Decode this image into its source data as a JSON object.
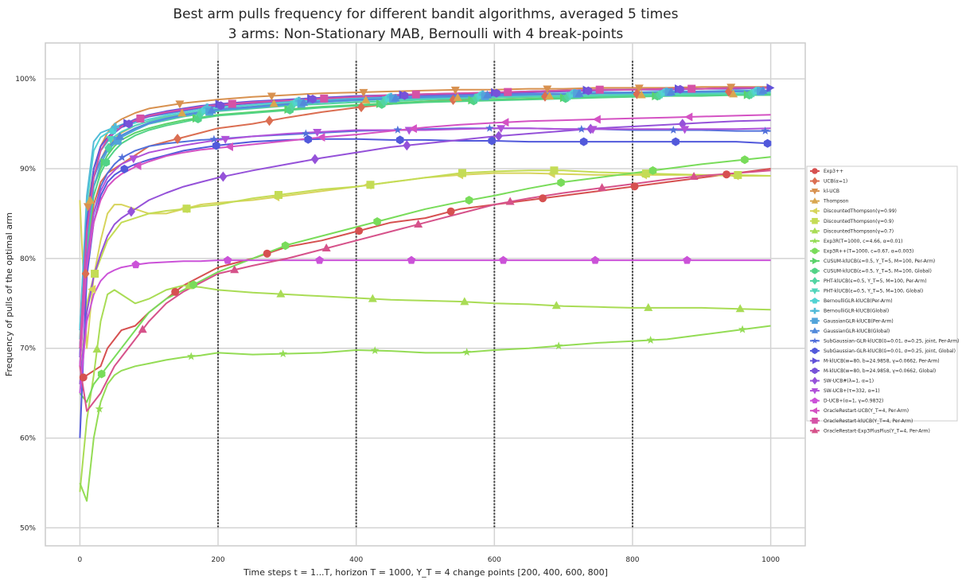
{
  "chart_data": {
    "type": "line",
    "title_line1": "Best arm pulls frequency for different bandit algorithms, averaged 5 times",
    "title_line2": "3 arms: Non-Stationary MAB, Bernoulli with 4 break-points",
    "xlabel": "Time steps t = 1...T, horizon T = 1000, Υ_T = 4 change points [200, 400, 600, 800]",
    "ylabel": "Frequency of pulls of the optimal arm",
    "xlim": [
      -50,
      1050
    ],
    "ylim": [
      48,
      104
    ],
    "xticks": [
      0,
      200,
      400,
      600,
      800,
      1000
    ],
    "xtick_labels": [
      "0",
      "200",
      "400",
      "600",
      "800",
      "1000"
    ],
    "yticks": [
      50,
      60,
      70,
      80,
      90,
      100
    ],
    "ytick_labels": [
      "50%",
      "60%",
      "70%",
      "80%",
      "90%",
      "100%"
    ],
    "breakpoints": [
      200,
      400,
      600,
      800
    ],
    "grid": true,
    "legend_position": "right",
    "x": [
      0,
      10,
      20,
      30,
      40,
      50,
      60,
      80,
      100,
      125,
      150,
      175,
      200,
      250,
      300,
      350,
      400,
      450,
      500,
      550,
      600,
      650,
      700,
      750,
      800,
      850,
      900,
      950,
      1000
    ],
    "series": [
      {
        "name": "Exp3++",
        "color": "#d65050",
        "marker": "circle",
        "values": [
          66.5,
          67.0,
          67.5,
          68.0,
          70.0,
          71.0,
          72.0,
          72.5,
          74.0,
          75.5,
          77.0,
          78.0,
          79.0,
          80.0,
          81.3,
          82.0,
          83.0,
          84.0,
          84.5,
          85.5,
          86.0,
          86.5,
          87.0,
          87.5,
          88.0,
          88.5,
          89.0,
          89.5,
          90.0
        ]
      },
      {
        "name": "UCB(α=1)",
        "color": "#db6e52",
        "marker": "diamond",
        "values": [
          70.0,
          80.0,
          86.0,
          88.5,
          89.5,
          90.0,
          90.5,
          91.5,
          92.5,
          93.0,
          93.5,
          94.0,
          94.5,
          95.0,
          95.7,
          96.3,
          96.8,
          97.2,
          97.5,
          97.7,
          97.9,
          98.0,
          98.1,
          98.2,
          98.3,
          98.4,
          98.5,
          98.6,
          98.7
        ]
      },
      {
        "name": "kl-UCB",
        "color": "#d8914f",
        "marker": "triangle-down",
        "values": [
          72.0,
          85.0,
          90.0,
          92.5,
          94.0,
          95.0,
          95.5,
          96.2,
          96.7,
          97.0,
          97.3,
          97.5,
          97.7,
          98.0,
          98.2,
          98.4,
          98.5,
          98.6,
          98.7,
          98.8,
          98.8,
          98.9,
          98.9,
          99.0,
          99.0,
          99.0,
          99.1,
          99.1,
          99.1
        ]
      },
      {
        "name": "Thompson",
        "color": "#d9a64f",
        "marker": "triangle-up",
        "values": [
          71.0,
          84.0,
          89.0,
          91.0,
          92.5,
          93.3,
          94.0,
          94.8,
          95.3,
          95.8,
          96.2,
          96.5,
          96.8,
          97.1,
          97.3,
          97.5,
          97.6,
          97.7,
          97.8,
          97.9,
          98.0,
          98.0,
          98.1,
          98.1,
          98.2,
          98.2,
          98.3,
          98.3,
          98.3
        ]
      },
      {
        "name": "DiscountedThompson(γ=0.99)",
        "color": "#d7d45c",
        "marker": "triangle-left",
        "values": [
          86.5,
          70.0,
          78.0,
          82.0,
          85.0,
          86.0,
          86.0,
          85.5,
          85.0,
          85.0,
          85.5,
          86.0,
          86.2,
          86.5,
          87.0,
          87.5,
          88.0,
          88.5,
          89.0,
          89.3,
          89.5,
          89.5,
          89.4,
          89.3,
          89.3,
          89.3,
          89.3,
          89.2,
          89.2
        ]
      },
      {
        "name": "DiscountedThompson(γ=0.9)",
        "color": "#c4dc55",
        "marker": "square",
        "values": [
          66.0,
          75.0,
          78.0,
          80.0,
          82.0,
          83.0,
          84.0,
          84.5,
          85.0,
          85.3,
          85.5,
          85.8,
          86.0,
          86.7,
          87.2,
          87.7,
          88.0,
          88.5,
          89.0,
          89.5,
          89.7,
          89.8,
          89.8,
          89.6,
          89.5,
          89.4,
          89.3,
          89.3,
          89.2
        ]
      },
      {
        "name": "DiscountedThompson(γ=0.7)",
        "color": "#a9dc55",
        "marker": "triangle-up",
        "values": [
          54.0,
          62.0,
          67.0,
          73.0,
          76.0,
          76.5,
          76.0,
          75.0,
          75.5,
          76.5,
          77.0,
          76.8,
          76.5,
          76.2,
          76.0,
          75.8,
          75.6,
          75.4,
          75.3,
          75.2,
          75.0,
          74.9,
          74.7,
          74.6,
          74.5,
          74.5,
          74.5,
          74.4,
          74.3
        ]
      },
      {
        "name": "Exp3R(T=1000, c=4.66, α=0.01)",
        "color": "#94dc55",
        "marker": "star",
        "values": [
          55.0,
          53.0,
          60.0,
          64.0,
          66.0,
          67.0,
          67.5,
          68.0,
          68.3,
          68.7,
          69.0,
          69.2,
          69.5,
          69.3,
          69.4,
          69.5,
          69.8,
          69.7,
          69.5,
          69.5,
          69.8,
          70.0,
          70.3,
          70.6,
          70.8,
          71.0,
          71.5,
          72.0,
          72.5
        ]
      },
      {
        "name": "Exp3R++(T=1000, c=0.67, α=0.003)",
        "color": "#79dc5a",
        "marker": "hexagon",
        "values": [
          65.0,
          64.0,
          66.0,
          67.0,
          68.0,
          69.0,
          70.0,
          72.0,
          74.0,
          75.5,
          76.5,
          77.5,
          78.5,
          80.0,
          81.5,
          82.5,
          83.5,
          84.5,
          85.5,
          86.3,
          87.0,
          87.8,
          88.5,
          89.0,
          89.5,
          90.0,
          90.5,
          90.9,
          91.3
        ]
      },
      {
        "name": "CUSUM-klUCB(ε=0.5, Υ_T=5, M=100, Per-Arm)",
        "color": "#5bd26a",
        "marker": "triangle-right",
        "values": [
          70.0,
          82.0,
          88.0,
          90.0,
          91.5,
          92.5,
          93.2,
          94.0,
          94.5,
          95.0,
          95.4,
          95.7,
          96.0,
          96.3,
          96.6,
          96.9,
          97.1,
          97.3,
          97.5,
          97.6,
          97.7,
          97.8,
          97.9,
          98.0,
          98.1,
          98.1,
          98.2,
          98.2,
          98.3
        ]
      },
      {
        "name": "CUSUM-klUCB(ε=0.5, Υ_T=5, M=100, Global)",
        "color": "#52d386",
        "marker": "hexagon",
        "values": [
          70.0,
          81.0,
          87.0,
          89.5,
          91.0,
          92.0,
          92.8,
          93.7,
          94.3,
          94.8,
          95.2,
          95.6,
          95.9,
          96.2,
          96.5,
          96.8,
          97.0,
          97.2,
          97.4,
          97.5,
          97.6,
          97.7,
          97.8,
          97.9,
          98.0,
          98.1,
          98.1,
          98.2,
          98.2
        ]
      },
      {
        "name": "PHT-klUCB(ε=0.5, Υ_T=5, M=100, Per-Arm)",
        "color": "#52d4a2",
        "marker": "diamond",
        "values": [
          70.0,
          83.0,
          89.0,
          91.0,
          92.2,
          93.0,
          93.6,
          94.4,
          95.0,
          95.4,
          95.8,
          96.1,
          96.4,
          96.7,
          97.0,
          97.2,
          97.4,
          97.5,
          97.7,
          97.8,
          97.9,
          98.0,
          98.0,
          98.1,
          98.2,
          98.2,
          98.3,
          98.3,
          98.4
        ]
      },
      {
        "name": "PHT-klUCB(ε=0.5, Υ_T=5, M=100, Global)",
        "color": "#52d5bb",
        "marker": "triangle-down",
        "values": [
          71.0,
          84.0,
          90.0,
          92.0,
          93.0,
          93.6,
          94.1,
          94.8,
          95.3,
          95.7,
          96.0,
          96.3,
          96.6,
          96.9,
          97.2,
          97.4,
          97.6,
          97.7,
          97.8,
          97.9,
          98.0,
          98.1,
          98.1,
          98.2,
          98.3,
          98.3,
          98.4,
          98.4,
          98.5
        ]
      },
      {
        "name": "BernoulliGLR-klUCB(Per-Arm)",
        "color": "#52d3d3",
        "marker": "pentagon",
        "values": [
          72.0,
          86.0,
          92.0,
          93.5,
          94.0,
          94.3,
          94.6,
          95.1,
          95.5,
          95.9,
          96.2,
          96.5,
          96.8,
          97.1,
          97.4,
          97.6,
          97.8,
          97.9,
          98.0,
          98.1,
          98.2,
          98.3,
          98.3,
          98.4,
          98.5,
          98.5,
          98.6,
          98.6,
          98.7
        ]
      },
      {
        "name": "BernoulliGLR-klUCB(Global)",
        "color": "#52bbd8",
        "marker": "plus",
        "values": [
          72.0,
          87.0,
          93.0,
          94.0,
          94.3,
          94.6,
          94.9,
          95.4,
          95.8,
          96.1,
          96.4,
          96.7,
          97.0,
          97.3,
          97.5,
          97.7,
          97.9,
          98.0,
          98.1,
          98.2,
          98.3,
          98.3,
          98.4,
          98.5,
          98.5,
          98.6,
          98.6,
          98.7,
          98.7
        ]
      },
      {
        "name": "GaussianGLR-klUCB(Per-Arm)",
        "color": "#52a4da",
        "marker": "square",
        "values": [
          70.0,
          82.0,
          88.0,
          90.5,
          92.0,
          92.8,
          93.5,
          94.3,
          95.0,
          95.5,
          95.9,
          96.2,
          96.5,
          96.8,
          97.1,
          97.4,
          97.6,
          97.8,
          97.9,
          98.0,
          98.1,
          98.2,
          98.3,
          98.4,
          98.4,
          98.5,
          98.5,
          98.6,
          98.6
        ]
      },
      {
        "name": "GaussianGLR-klUCB(Global)",
        "color": "#528adb",
        "marker": "triangle-up",
        "values": [
          70.0,
          83.0,
          89.0,
          91.0,
          92.3,
          93.1,
          93.7,
          94.5,
          95.1,
          95.6,
          96.0,
          96.3,
          96.6,
          96.9,
          97.2,
          97.5,
          97.7,
          97.8,
          98.0,
          98.1,
          98.2,
          98.3,
          98.3,
          98.4,
          98.5,
          98.5,
          98.6,
          98.6,
          98.7
        ]
      },
      {
        "name": "SubGaussian-GLR-klUCB(δ=0.01, σ=0.25, joint, Per-Arm)",
        "color": "#5270db",
        "marker": "star",
        "values": [
          68.0,
          80.0,
          85.0,
          88.0,
          89.5,
          90.5,
          91.2,
          92.0,
          92.5,
          92.8,
          93.0,
          93.2,
          93.3,
          93.6,
          93.8,
          94.0,
          94.2,
          94.3,
          94.4,
          94.5,
          94.5,
          94.5,
          94.4,
          94.4,
          94.3,
          94.3,
          94.3,
          94.2,
          94.2
        ]
      },
      {
        "name": "SubGaussian-GLR-klUCB(δ=0.01, σ=0.25, joint, Global)",
        "color": "#5259db",
        "marker": "hexagon",
        "values": [
          60.0,
          78.0,
          84.0,
          87.0,
          88.5,
          89.3,
          89.8,
          90.5,
          91.0,
          91.5,
          92.0,
          92.3,
          92.6,
          93.0,
          93.2,
          93.3,
          93.3,
          93.2,
          93.2,
          93.1,
          93.1,
          93.0,
          93.0,
          93.0,
          93.0,
          93.0,
          93.0,
          93.0,
          92.8
        ]
      },
      {
        "name": "M-klUCB(w=80, b=24.9858, γ=0.0662, Per-Arm)",
        "color": "#6252d9",
        "marker": "triangle-right",
        "values": [
          69.0,
          84.0,
          90.0,
          92.5,
          93.5,
          94.2,
          94.8,
          95.5,
          96.0,
          96.4,
          96.7,
          97.0,
          97.2,
          97.5,
          97.7,
          97.9,
          98.1,
          98.2,
          98.3,
          98.4,
          98.5,
          98.6,
          98.7,
          98.8,
          98.8,
          98.9,
          98.9,
          99.0,
          99.0
        ]
      },
      {
        "name": "M-klUCB(w=80, b=24.9858, γ=0.0662, Global)",
        "color": "#7752d9",
        "marker": "hexagon",
        "values": [
          69.0,
          83.0,
          89.0,
          92.0,
          93.2,
          94.0,
          94.6,
          95.3,
          95.8,
          96.2,
          96.5,
          96.8,
          97.0,
          97.3,
          97.6,
          97.8,
          98.0,
          98.1,
          98.2,
          98.3,
          98.4,
          98.5,
          98.6,
          98.7,
          98.8,
          98.8,
          98.9,
          98.9,
          99.0
        ]
      },
      {
        "name": "SW-UCB#(λ=1, α=1)",
        "color": "#9552d9",
        "marker": "diamond",
        "values": [
          66.0,
          74.0,
          78.0,
          80.5,
          82.5,
          83.8,
          84.5,
          85.5,
          86.5,
          87.3,
          88.0,
          88.5,
          89.0,
          89.8,
          90.5,
          91.2,
          91.8,
          92.4,
          92.8,
          93.2,
          93.6,
          93.9,
          94.2,
          94.5,
          94.7,
          94.9,
          95.1,
          95.3,
          95.4
        ]
      },
      {
        "name": "SW-UCB+(τ=332, α=1)",
        "color": "#b052d9",
        "marker": "triangle-down",
        "values": [
          68.0,
          80.0,
          85.0,
          87.5,
          89.0,
          89.8,
          90.5,
          91.2,
          91.8,
          92.2,
          92.6,
          92.9,
          93.2,
          93.6,
          93.9,
          94.1,
          94.3,
          94.3,
          94.3,
          94.4,
          94.5,
          94.5,
          94.4,
          94.4,
          94.4,
          94.4,
          94.4,
          94.4,
          94.5
        ]
      },
      {
        "name": "D-UCB+(α=1, γ=0.9832)",
        "color": "#cb52d8",
        "marker": "pentagon",
        "values": [
          65.0,
          73.0,
          76.0,
          77.5,
          78.3,
          78.7,
          79.0,
          79.3,
          79.5,
          79.6,
          79.7,
          79.7,
          79.8,
          79.8,
          79.8,
          79.8,
          79.8,
          79.8,
          79.8,
          79.8,
          79.8,
          79.8,
          79.8,
          79.8,
          79.8,
          79.8,
          79.8,
          79.8,
          79.8
        ]
      },
      {
        "name": "OracleRestart-UCB(Υ_T=4, Per-Arm)",
        "color": "#d452c3",
        "marker": "triangle-left",
        "values": [
          68.0,
          79.0,
          84.0,
          86.5,
          88.0,
          88.8,
          89.4,
          90.2,
          90.8,
          91.4,
          91.8,
          92.1,
          92.3,
          92.7,
          93.1,
          93.5,
          93.8,
          94.2,
          94.6,
          94.9,
          95.1,
          95.3,
          95.4,
          95.5,
          95.6,
          95.7,
          95.8,
          95.9,
          96.0
        ]
      },
      {
        "name": "OracleRestart-klUCB(Υ_T=4, Per-Arm)",
        "color": "#d552a6",
        "marker": "square",
        "values": [
          70.0,
          83.0,
          89.0,
          92.0,
          93.3,
          94.1,
          94.7,
          95.4,
          95.9,
          96.3,
          96.6,
          96.9,
          97.1,
          97.4,
          97.6,
          97.8,
          98.0,
          98.2,
          98.3,
          98.4,
          98.5,
          98.6,
          98.7,
          98.8,
          98.8,
          98.9,
          98.9,
          99.0,
          99.0
        ]
      },
      {
        "name": "OracleRestart-Exp3PlusPlus(Υ_T=4, Per-Arm)",
        "color": "#d6528a",
        "marker": "triangle-up",
        "values": [
          68.0,
          63.0,
          64.0,
          65.0,
          66.5,
          68.0,
          69.0,
          71.0,
          73.0,
          75.0,
          76.3,
          77.3,
          78.3,
          79.2,
          80.0,
          81.0,
          82.0,
          83.0,
          84.0,
          85.0,
          86.0,
          86.7,
          87.3,
          87.8,
          88.3,
          88.8,
          89.2,
          89.5,
          89.8
        ]
      }
    ]
  }
}
